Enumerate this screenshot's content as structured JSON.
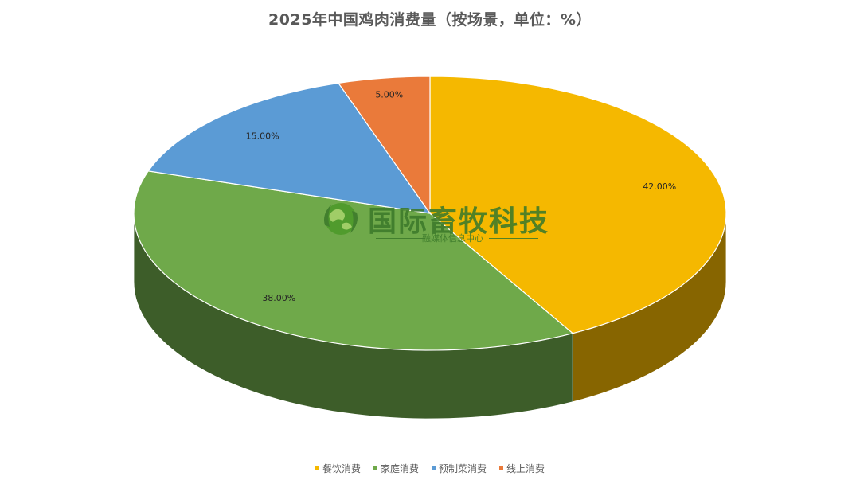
{
  "chart_data": {
    "type": "pie",
    "title": "2025年中国鸡肉消费量（按场景，单位：%）",
    "slices": [
      {
        "name": "餐饮消费",
        "value": 42.0,
        "label": "42.00%",
        "color": "#f5b800"
      },
      {
        "name": "家庭消费",
        "value": 38.0,
        "label": "38.00%",
        "color": "#6fa94a"
      },
      {
        "name": "预制菜消费",
        "value": 15.0,
        "label": "15.00%",
        "color": "#5b9bd5"
      },
      {
        "name": "线上消费",
        "value": 5.0,
        "label": "5.00%",
        "color": "#ea7a3a"
      }
    ],
    "legend_position": "bottom",
    "style": "3d"
  },
  "watermark": {
    "title": "国际畜牧科技",
    "subtitle": "融媒体信息中心",
    "icon": "globe-leaf-icon"
  }
}
